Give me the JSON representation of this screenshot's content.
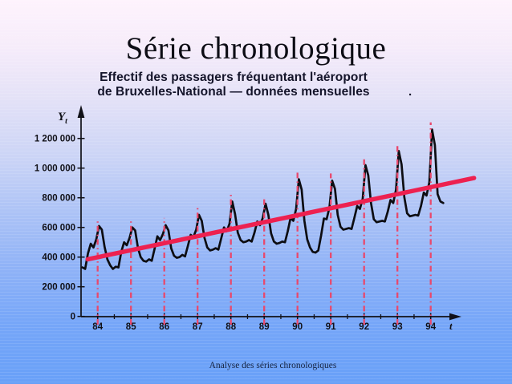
{
  "slide": {
    "title": "Série chronologique",
    "subtitle_line1": "Effectif des passagers fréquentant l'aéroport",
    "subtitle_line2": "de Bruxelles-National — données mensuelles",
    "stray_dot": ".",
    "footer": "Analyse des séries chronologiques"
  },
  "colors": {
    "background_top": "#fef3fd",
    "background_bottom": "#68a0f8",
    "series_line": "#0d0d12",
    "trend_line": "#ed2150",
    "seasonal_lines": "#e9486c",
    "axis": "#111118",
    "text": "#14142a"
  },
  "chart_data": {
    "type": "line",
    "title": "Effectif des passagers fréquentant l'aéroport de Bruxelles-National — données mensuelles",
    "xlabel": "t",
    "ylabel": "Y",
    "ylabel_sub": "t",
    "x_tick_labels": [
      "84",
      "85",
      "86",
      "87",
      "88",
      "89",
      "90",
      "91",
      "92",
      "93",
      "94"
    ],
    "y_ticks": [
      {
        "value": 1200000,
        "label": "1 200 000"
      },
      {
        "value": 1000000,
        "label": "1 000 000"
      },
      {
        "value": 800000,
        "label": "800 000"
      },
      {
        "value": 600000,
        "label": "600 000"
      },
      {
        "value": 400000,
        "label": "400 000"
      },
      {
        "value": 200000,
        "label": "200 000"
      },
      {
        "value": 0,
        "label": "0"
      }
    ],
    "ylim": [
      0,
      1300000
    ],
    "x_start_year": 1984,
    "frequency": "monthly",
    "grid": false,
    "legend": "none",
    "series": [
      {
        "name": "effectif mensuel des passagers",
        "color": "#0d0d12",
        "start": "1984-01",
        "end": "1994-11",
        "values": [
          330000,
          320000,
          425000,
          490000,
          465000,
          520000,
          610000,
          585000,
          470000,
          385000,
          345000,
          320000,
          335000,
          330000,
          435000,
          500000,
          480000,
          530000,
          600000,
          580000,
          465000,
          400000,
          375000,
          370000,
          385000,
          375000,
          455000,
          540000,
          515000,
          555000,
          615000,
          580000,
          460000,
          410000,
          395000,
          400000,
          415000,
          405000,
          475000,
          550000,
          535000,
          585000,
          685000,
          645000,
          530000,
          465000,
          445000,
          450000,
          460000,
          450000,
          525000,
          600000,
          575000,
          625000,
          775000,
          690000,
          565000,
          515000,
          500000,
          505000,
          515000,
          505000,
          565000,
          640000,
          615000,
          665000,
          760000,
          685000,
          560000,
          505000,
          490000,
          495000,
          505000,
          500000,
          575000,
          665000,
          645000,
          725000,
          925000,
          855000,
          645000,
          520000,
          465000,
          435000,
          430000,
          445000,
          545000,
          660000,
          655000,
          735000,
          915000,
          860000,
          685000,
          605000,
          585000,
          590000,
          595000,
          590000,
          665000,
          745000,
          725000,
          795000,
          1020000,
          950000,
          765000,
          655000,
          635000,
          640000,
          645000,
          640000,
          705000,
          785000,
          765000,
          855000,
          1115000,
          1025000,
          805000,
          695000,
          675000,
          680000,
          685000,
          680000,
          745000,
          835000,
          815000,
          905000,
          1260000,
          1155000,
          825000,
          775000,
          765000
        ]
      }
    ],
    "trend_line": {
      "name": "tendance",
      "color": "#ed2150",
      "from": {
        "year": 1984.2,
        "value": 385000
      },
      "to": {
        "year": 1995.8,
        "value": 933000
      }
    },
    "seasonal_peak_lines": {
      "color": "#e9486c",
      "style": "dash-dot",
      "years": [
        1984,
        1985,
        1986,
        1987,
        1988,
        1989,
        1990,
        1991,
        1992,
        1993,
        1994
      ]
    }
  }
}
